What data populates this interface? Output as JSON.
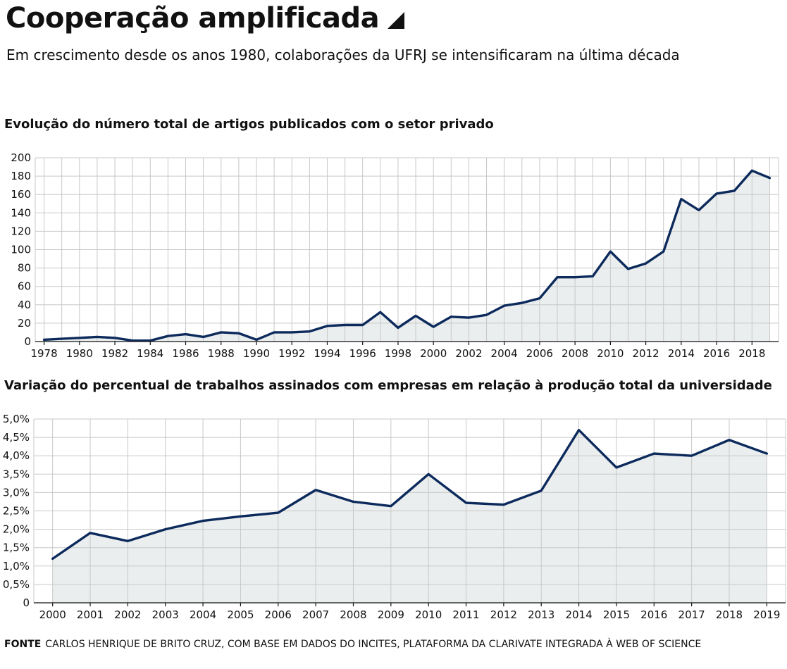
{
  "header": {
    "title": "Cooperação amplificada",
    "subtitle": "Em crescimento desde os anos 1980, colaborações da UFRJ se intensificaram na última década"
  },
  "source": {
    "label": "FONTE",
    "text": "CARLOS HENRIQUE DE BRITO CRUZ, COM BASE EM DADOS DO INCITES, PLATAFORMA DA CLARIVATE INTEGRADA À WEB OF SCIENCE"
  },
  "colors": {
    "line": "#0c2a5c",
    "area": "#ebeeee",
    "grid": "#c8c8c8"
  },
  "chart_data": [
    {
      "type": "area",
      "title": "Evolução do número total de artigos publicados com o setor privado",
      "xlabel": "",
      "ylabel": "",
      "x": [
        1978,
        1979,
        1980,
        1981,
        1982,
        1983,
        1984,
        1985,
        1986,
        1987,
        1988,
        1989,
        1990,
        1991,
        1992,
        1993,
        1994,
        1995,
        1996,
        1997,
        1998,
        1999,
        2000,
        2001,
        2002,
        2003,
        2004,
        2005,
        2006,
        2007,
        2008,
        2009,
        2010,
        2011,
        2012,
        2013,
        2014,
        2015,
        2016,
        2017,
        2018,
        2019
      ],
      "values": [
        2,
        3,
        4,
        5,
        4,
        1,
        1,
        6,
        8,
        5,
        10,
        9,
        2,
        10,
        10,
        11,
        17,
        18,
        18,
        32,
        15,
        28,
        16,
        27,
        26,
        29,
        39,
        42,
        47,
        70,
        70,
        71,
        98,
        79,
        85,
        98,
        155,
        143,
        161,
        164,
        186,
        178
      ],
      "xticks": [
        "1978",
        "1980",
        "1982",
        "1984",
        "1986",
        "1988",
        "1990",
        "1992",
        "1994",
        "1996",
        "1998",
        "2000",
        "2002",
        "2004",
        "2006",
        "2008",
        "2010",
        "2012",
        "2014",
        "2016",
        "2018"
      ],
      "yticks": [
        "0",
        "20",
        "40",
        "60",
        "80",
        "100",
        "120",
        "140",
        "160",
        "180",
        "200"
      ],
      "xlim": [
        1978,
        2019
      ],
      "ylim": [
        0,
        200
      ],
      "grid": true,
      "legend": "none"
    },
    {
      "type": "area",
      "title": "Variação do percentual de trabalhos assinados com empresas em relação à produção total da universidade",
      "xlabel": "",
      "ylabel": "",
      "x": [
        2000,
        2001,
        2002,
        2003,
        2004,
        2005,
        2006,
        2007,
        2008,
        2009,
        2010,
        2011,
        2012,
        2013,
        2014,
        2015,
        2016,
        2017,
        2018,
        2019
      ],
      "values": [
        1.2,
        1.9,
        1.68,
        2.0,
        2.23,
        2.35,
        2.45,
        3.07,
        2.75,
        2.63,
        3.5,
        2.72,
        2.67,
        3.05,
        4.7,
        3.68,
        4.06,
        4.0,
        4.43,
        4.06
      ],
      "xticks": [
        "2000",
        "2001",
        "2002",
        "2003",
        "2004",
        "2005",
        "2006",
        "2007",
        "2008",
        "2009",
        "2010",
        "2011",
        "2012",
        "2013",
        "2014",
        "2015",
        "2016",
        "2017",
        "2018",
        "2019"
      ],
      "yticks": [
        "0",
        "0,5%",
        "1,0%",
        "1,5%",
        "2,0%",
        "2,5%",
        "3,0%",
        "3,5%",
        "4,0%",
        "4,5%",
        "5,0%"
      ],
      "xlim": [
        2000,
        2019
      ],
      "ylim": [
        0,
        5
      ],
      "grid": true,
      "legend": "none"
    }
  ]
}
